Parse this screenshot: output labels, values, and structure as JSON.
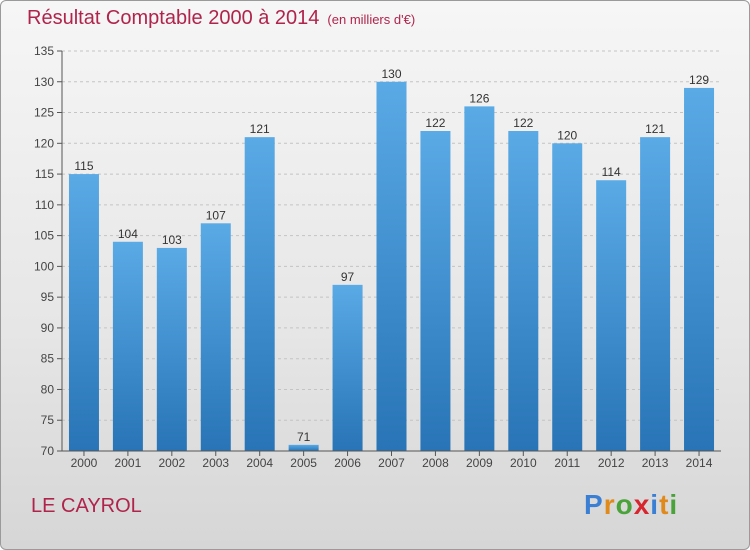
{
  "header": {
    "title": "Résultat Comptable 2000 à 2014",
    "unit": "(en milliers d'€)"
  },
  "footer": {
    "commune": "LE CAYROL",
    "brand_letters": [
      {
        "ch": "P",
        "color": "#3b7fd4"
      },
      {
        "ch": "r",
        "color": "#e08a1c"
      },
      {
        "ch": "o",
        "color": "#4aa33a"
      },
      {
        "ch": "x",
        "color": "#d8262e"
      },
      {
        "ch": "i",
        "color": "#3b7fd4"
      },
      {
        "ch": "t",
        "color": "#e08a1c"
      },
      {
        "ch": "i",
        "color": "#4aa33a"
      }
    ]
  },
  "colors": {
    "title": "#b0244c",
    "bar_top": "#5aaae6",
    "bar_bottom": "#2874b6"
  },
  "chart_data": {
    "type": "bar",
    "categories": [
      "2000",
      "2001",
      "2002",
      "2003",
      "2004",
      "2005",
      "2006",
      "2007",
      "2008",
      "2009",
      "2010",
      "2011",
      "2012",
      "2013",
      "2014"
    ],
    "values": [
      115,
      104,
      103,
      107,
      121,
      71,
      97,
      130,
      122,
      126,
      122,
      120,
      114,
      121,
      129
    ],
    "yticks": [
      70,
      75,
      80,
      85,
      90,
      95,
      100,
      105,
      110,
      115,
      120,
      125,
      130,
      135
    ],
    "ylim": [
      70,
      135
    ],
    "grid": true
  }
}
